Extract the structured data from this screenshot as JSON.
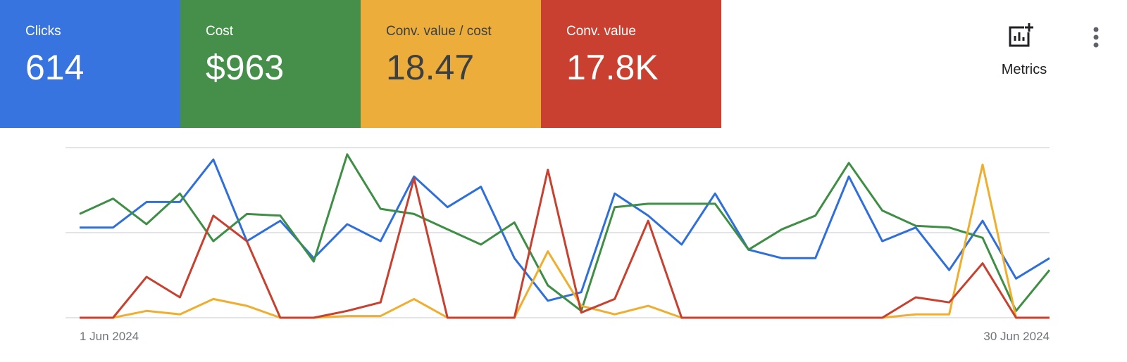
{
  "cards": [
    {
      "label": "Clicks",
      "value": "614",
      "color": "#3874e0"
    },
    {
      "label": "Cost",
      "value": "$963",
      "color": "#468f4b"
    },
    {
      "label": "Conv. value / cost",
      "value": "18.47",
      "color": "#ecad3b"
    },
    {
      "label": "Conv. value",
      "value": "17.8K",
      "color": "#c94030"
    }
  ],
  "toolbar": {
    "metrics_label": "Metrics",
    "metrics_icon": "add-chart-icon",
    "more_icon": "more-vert-icon"
  },
  "chart_data": {
    "type": "line",
    "x_labels": [
      "1 Jun 2024",
      "30 Jun 2024"
    ],
    "grid": true,
    "y_range": [
      0,
      100
    ],
    "series": [
      {
        "name": "Clicks",
        "color": "#2f6fdc",
        "values": [
          53,
          53,
          68,
          68,
          93,
          45,
          57,
          35,
          55,
          45,
          83,
          65,
          77,
          35,
          10,
          15,
          73,
          60,
          43,
          73,
          40,
          35,
          35,
          83,
          45,
          53,
          28,
          57,
          23,
          35
        ]
      },
      {
        "name": "Cost",
        "color": "#3f8e45",
        "values": [
          61,
          70,
          55,
          73,
          45,
          61,
          60,
          33,
          96,
          64,
          61,
          52,
          43,
          56,
          19,
          4,
          65,
          67,
          67,
          67,
          40,
          52,
          60,
          91,
          63,
          54,
          53,
          47,
          4,
          28
        ]
      },
      {
        "name": "Conv. value / cost",
        "color": "#efae2d",
        "values": [
          0,
          0,
          4,
          2,
          11,
          7,
          0,
          0,
          1,
          1,
          11,
          0,
          0,
          0,
          39,
          7,
          2,
          7,
          0,
          0,
          0,
          0,
          0,
          0,
          0,
          2,
          2,
          90,
          0,
          0
        ]
      },
      {
        "name": "Conv. value",
        "color": "#c8402f",
        "values": [
          0,
          0,
          24,
          12,
          60,
          45,
          0,
          0,
          4,
          9,
          82,
          0,
          0,
          0,
          87,
          3,
          11,
          57,
          0,
          0,
          0,
          0,
          0,
          0,
          0,
          12,
          9,
          32,
          0,
          0
        ]
      }
    ]
  }
}
